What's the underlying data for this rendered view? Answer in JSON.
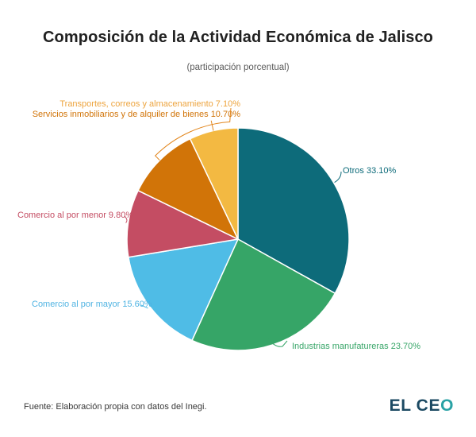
{
  "header": {
    "title": "Composición de la Actividad Económica de Jalisco",
    "subtitle": "(participación porcentual)"
  },
  "chart_data": {
    "type": "pie",
    "title": "Composición de la Actividad Económica de Jalisco",
    "subtitle": "(participación porcentual)",
    "unit": "percent",
    "start_angle_deg": 0,
    "direction": "clockwise",
    "legend": "none (labels with leader lines)",
    "bracket_color": "#e2851b",
    "slices": [
      {
        "label": "Otros",
        "value": 33.1,
        "display": "Otros 33.10%",
        "color": "#0d6b7a",
        "label_color": "#0d6b7a"
      },
      {
        "label": "Industrias manufatureras",
        "value": 23.7,
        "display": "Industrias manufatureras 23.70%",
        "color": "#36a567",
        "label_color": "#36a567"
      },
      {
        "label": "Comercio al por mayor",
        "value": 15.6,
        "display": "Comercio al por mayor 15.60%",
        "color": "#4fbce6",
        "label_color": "#4fb3e2"
      },
      {
        "label": "Comercio al por menor",
        "value": 9.8,
        "display": "Comercio al por menor 9.80%",
        "color": "#c44d63",
        "label_color": "#c44d63"
      },
      {
        "label": "Servicios inmobiliarios y de alquiler de bienes",
        "value": 10.7,
        "display": "Servicios inmobiliarios y de alquiler de bienes 10.70%",
        "color": "#d17408",
        "label_color": "#d17408"
      },
      {
        "label": "Transportes, correos y almacenamiento",
        "value": 7.1,
        "display": "Transportes, correos y almacenamiento 7.10%",
        "color": "#f3b942",
        "label_color": "#eda43e"
      }
    ]
  },
  "footer": {
    "source": "Fuente: Elaboración propia con datos del Inegi.",
    "logo": {
      "text": "EL CEO",
      "text_dark": "EL CE",
      "text_accent": "O",
      "dark_color": "#1c4a63",
      "accent_color": "#29a2a5"
    }
  }
}
